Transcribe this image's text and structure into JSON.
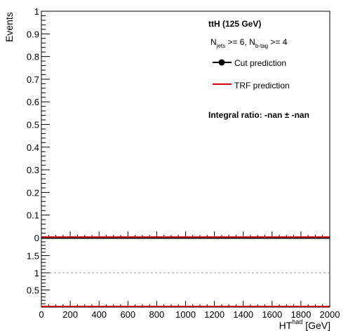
{
  "chart_data": [
    {
      "type": "line",
      "title": "ttH (125 GeV)",
      "subtitle_parts": {
        "n1": "N",
        "s1": "jets",
        "t1": " >= 6, N",
        "s2": "b-tag",
        "t2": " >= 4"
      },
      "xlabel": "",
      "ylabel": "Events",
      "xlim": [
        0,
        2000
      ],
      "ylim": [
        0,
        1
      ],
      "yticks": [
        0,
        0.1,
        0.2,
        0.3,
        0.4,
        0.5,
        0.6,
        0.7,
        0.8,
        0.9,
        1
      ],
      "ytick_labels": [
        "0",
        "0.1",
        "0.2",
        "0.3",
        "0.4",
        "0.5",
        "0.6",
        "0.7",
        "0.8",
        "0.9",
        "1"
      ],
      "series": [
        {
          "name": "Cut prediction",
          "color": "#000000",
          "marker": "circle",
          "x": [
            0,
            2000
          ],
          "y": [
            0,
            0
          ]
        },
        {
          "name": "TRF prediction",
          "color": "#d00000",
          "x": [
            0,
            2000
          ],
          "y": [
            0,
            0
          ]
        }
      ],
      "annotation": "Integral ratio: -nan ± -nan"
    },
    {
      "type": "line",
      "xlabel_main": "HT",
      "xlabel_sup": "had",
      "xlabel_unit": " [GeV]",
      "xlim": [
        0,
        2000
      ],
      "ylim": [
        0,
        2
      ],
      "xticks": [
        0,
        200,
        400,
        600,
        800,
        1000,
        1200,
        1400,
        1600,
        1800,
        2000
      ],
      "xtick_labels": [
        "0",
        "200",
        "400",
        "600",
        "800",
        "1000",
        "1200",
        "1400",
        "1600",
        "1800",
        "2000"
      ],
      "yticks": [
        0.5,
        1,
        1.5
      ],
      "ytick_labels": [
        "0.5",
        "1",
        "1.5"
      ],
      "reference_line": 1,
      "series": [
        {
          "color": "#d00000",
          "x": [
            0,
            2000
          ],
          "y": [
            0,
            0
          ]
        }
      ]
    }
  ],
  "colors": {
    "cut": "#000000",
    "trf": "#d00000",
    "reference": "#999999"
  }
}
